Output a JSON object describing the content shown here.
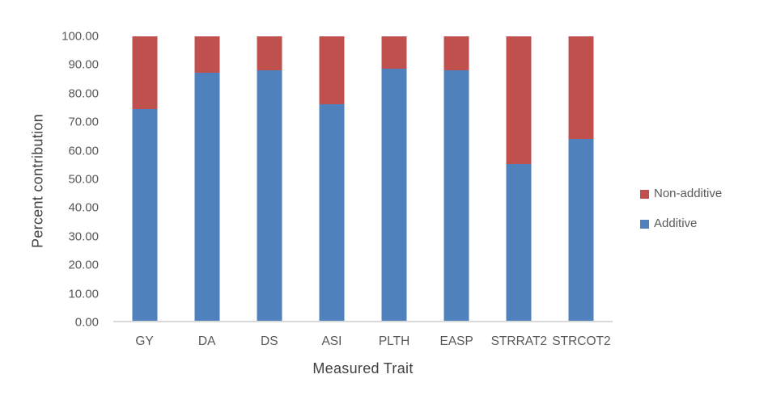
{
  "chart_data": {
    "type": "bar",
    "stacked": true,
    "title": "",
    "xlabel": "Measured Trait",
    "ylabel": "Percent contribution",
    "ylim": [
      0,
      100
    ],
    "ytick_labels": [
      "100.00",
      "90.00",
      "80.00",
      "70.00",
      "60.00",
      "50.00",
      "40.00",
      "30.00",
      "20.00",
      "10.00",
      "0.00"
    ],
    "categories": [
      "GY",
      "DA",
      "DS",
      "ASI",
      "PLTH",
      "EASP",
      "STRRAT2",
      "STRCOT2"
    ],
    "series": [
      {
        "name": "Additive",
        "color": "#4F81BD",
        "values": [
          74.5,
          87.3,
          88.2,
          76.0,
          88.6,
          88.0,
          55.0,
          64.0
        ]
      },
      {
        "name": "Non-additive",
        "color": "#C0504D",
        "values": [
          25.5,
          12.7,
          11.8,
          24.0,
          11.4,
          12.0,
          45.0,
          36.0
        ]
      }
    ],
    "legend_position": "right",
    "legend_order": [
      "Non-additive",
      "Additive"
    ],
    "grid": false
  },
  "colors": {
    "background": "#FFFFFF",
    "axis_line": "#D9D9D9",
    "tick_text": "#595959",
    "title_text": "#404040",
    "additive": "#4F81BD",
    "non_additive": "#C0504D"
  }
}
